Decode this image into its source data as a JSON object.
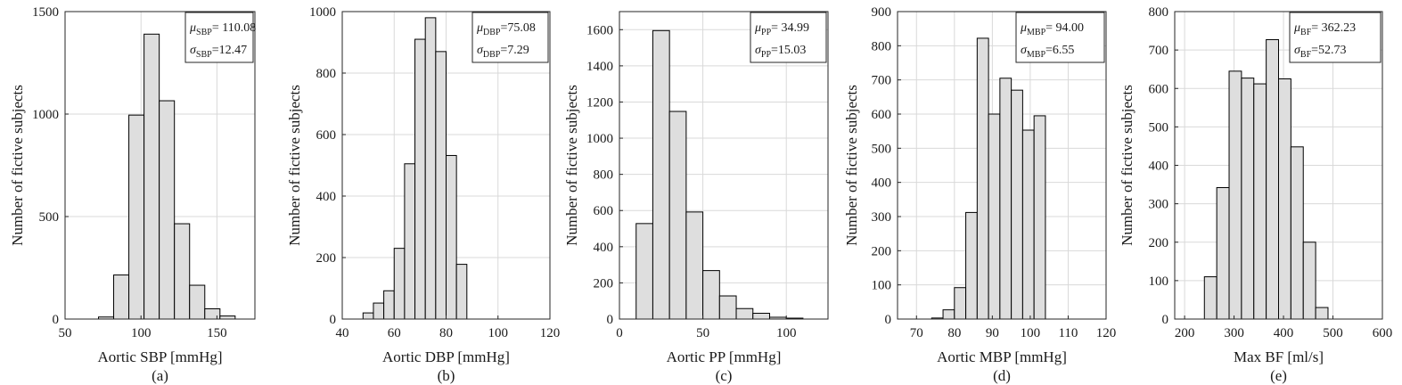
{
  "figure": {
    "background": "#ffffff",
    "bar_fill": "#dedede",
    "bar_stroke": "#000000",
    "grid_color": "#d9d9d9"
  },
  "chart_data": [
    {
      "type": "bar",
      "panel_label": "(a)",
      "xlabel": "Aortic SBP [mmHg]",
      "ylabel": "Number of fictive subjects",
      "xlim": [
        50,
        175
      ],
      "ylim": [
        0,
        1500
      ],
      "xticks": [
        50,
        100,
        150
      ],
      "yticks": [
        0,
        500,
        1000,
        1500
      ],
      "bins": [
        [
          72,
          82,
          10
        ],
        [
          82,
          92,
          215
        ],
        [
          92,
          102,
          995
        ],
        [
          102,
          112,
          1390
        ],
        [
          112,
          122,
          1065
        ],
        [
          122,
          132,
          465
        ],
        [
          132,
          142,
          165
        ],
        [
          142,
          152,
          50
        ],
        [
          152,
          162,
          15
        ]
      ],
      "stats": {
        "mu_sym": "μ",
        "mu_sub": "SBP",
        "mu_val": "= 110.08",
        "sigma_sym": "σ",
        "sigma_sub": "SBP",
        "sigma_val": "=12.47"
      }
    },
    {
      "type": "bar",
      "panel_label": "(b)",
      "xlabel": "Aortic DBP [mmHg]",
      "ylabel": "Number of fictive subjects",
      "xlim": [
        40,
        120
      ],
      "ylim": [
        0,
        1000
      ],
      "xticks": [
        40,
        60,
        80,
        100,
        120
      ],
      "yticks": [
        0,
        200,
        400,
        600,
        800,
        1000
      ],
      "bins": [
        [
          48,
          52,
          20
        ],
        [
          52,
          56,
          52
        ],
        [
          56,
          60,
          92
        ],
        [
          60,
          64,
          230
        ],
        [
          64,
          68,
          505
        ],
        [
          68,
          72,
          910
        ],
        [
          72,
          76,
          980
        ],
        [
          76,
          80,
          870
        ],
        [
          80,
          84,
          532
        ],
        [
          84,
          88,
          178
        ]
      ],
      "stats": {
        "mu_sym": "μ",
        "mu_sub": "DBP",
        "mu_val": "=75.08",
        "sigma_sym": "σ",
        "sigma_sub": "DBP",
        "sigma_val": "=7.29"
      }
    },
    {
      "type": "bar",
      "panel_label": "(c)",
      "xlabel": "Aortic PP [mmHg]",
      "ylabel": "Number of fictive subjects",
      "xlim": [
        0,
        125
      ],
      "ylim": [
        0,
        1700
      ],
      "xticks": [
        0,
        50,
        100
      ],
      "yticks": [
        0,
        200,
        400,
        600,
        800,
        1000,
        1200,
        1400,
        1600
      ],
      "bins": [
        [
          10,
          20,
          528
        ],
        [
          20,
          30,
          1595
        ],
        [
          30,
          40,
          1148
        ],
        [
          40,
          50,
          592
        ],
        [
          50,
          60,
          268
        ],
        [
          60,
          70,
          128
        ],
        [
          70,
          80,
          58
        ],
        [
          80,
          90,
          32
        ],
        [
          90,
          100,
          10
        ],
        [
          100,
          110,
          5
        ]
      ],
      "stats": {
        "mu_sym": "μ",
        "mu_sub": "PP",
        "mu_val": "= 34.99",
        "sigma_sym": "σ",
        "sigma_sub": "PP",
        "sigma_val": "=15.03"
      }
    },
    {
      "type": "bar",
      "panel_label": "(d)",
      "xlabel": "Aortic MBP [mmHg]",
      "ylabel": "Number of fictive subjects",
      "xlim": [
        65,
        120
      ],
      "ylim": [
        0,
        900
      ],
      "xticks": [
        70,
        80,
        90,
        100,
        110,
        120
      ],
      "yticks": [
        0,
        100,
        200,
        300,
        400,
        500,
        600,
        700,
        800,
        900
      ],
      "bins": [
        [
          74,
          77,
          3
        ],
        [
          77,
          80,
          27
        ],
        [
          80,
          83,
          92
        ],
        [
          83,
          86,
          312
        ],
        [
          86,
          89,
          822
        ],
        [
          89,
          92,
          600
        ],
        [
          92,
          95,
          705
        ],
        [
          95,
          98,
          670
        ],
        [
          98,
          101,
          553
        ],
        [
          101,
          104,
          595
        ]
      ],
      "stats": {
        "mu_sym": "μ",
        "mu_sub": "MBP",
        "mu_val": "= 94.00",
        "sigma_sym": "σ",
        "sigma_sub": "MBP",
        "sigma_val": "=6.55"
      }
    },
    {
      "type": "bar",
      "panel_label": "(e)",
      "xlabel": "Max BF [ml/s]",
      "ylabel": "Number of fictive subjects",
      "xlim": [
        180,
        600
      ],
      "ylim": [
        0,
        800
      ],
      "xticks": [
        200,
        300,
        400,
        500,
        600
      ],
      "yticks": [
        0,
        100,
        200,
        300,
        400,
        500,
        600,
        700,
        800
      ],
      "bins": [
        [
          240,
          265,
          110
        ],
        [
          265,
          290,
          342
        ],
        [
          290,
          315,
          645
        ],
        [
          315,
          340,
          627
        ],
        [
          340,
          365,
          612
        ],
        [
          365,
          390,
          727
        ],
        [
          390,
          415,
          625
        ],
        [
          415,
          440,
          448
        ],
        [
          440,
          465,
          200
        ],
        [
          465,
          490,
          30
        ]
      ],
      "stats": {
        "mu_sym": "μ",
        "mu_sub": "BF",
        "mu_val": "= 362.23",
        "sigma_sym": "σ",
        "sigma_sub": "BF",
        "sigma_val": "=52.73"
      }
    }
  ]
}
